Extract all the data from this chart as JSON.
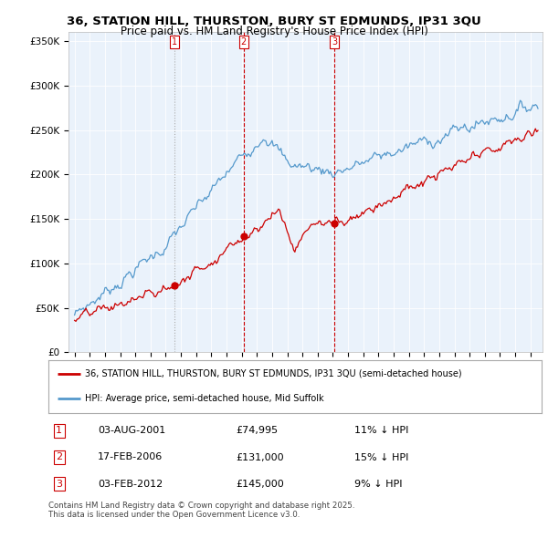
{
  "title1": "36, STATION HILL, THURSTON, BURY ST EDMUNDS, IP31 3QU",
  "title2": "Price paid vs. HM Land Registry's House Price Index (HPI)",
  "legend_line1": "36, STATION HILL, THURSTON, BURY ST EDMUNDS, IP31 3QU (semi-detached house)",
  "legend_line2": "HPI: Average price, semi-detached house, Mid Suffolk",
  "sale1_date": "03-AUG-2001",
  "sale1_price": "£74,995",
  "sale1_hpi": "11% ↓ HPI",
  "sale2_date": "17-FEB-2006",
  "sale2_price": "£131,000",
  "sale2_hpi": "15% ↓ HPI",
  "sale3_date": "03-FEB-2012",
  "sale3_price": "£145,000",
  "sale3_hpi": "9% ↓ HPI",
  "sale_color": "#cc0000",
  "hpi_color": "#5599cc",
  "vline_color": "#cc0000",
  "plot_bg": "#eaf2fb",
  "ylim": [
    0,
    360000
  ],
  "yticks": [
    0,
    50000,
    100000,
    150000,
    200000,
    250000,
    300000,
    350000
  ],
  "footer": "Contains HM Land Registry data © Crown copyright and database right 2025.\nThis data is licensed under the Open Government Licence v3.0.",
  "sale1_x": 2001.58,
  "sale2_x": 2006.12,
  "sale3_x": 2012.09,
  "sale1_y": 74995,
  "sale2_y": 131000,
  "sale3_y": 145000,
  "xlim_left": 1994.6,
  "xlim_right": 2025.8
}
